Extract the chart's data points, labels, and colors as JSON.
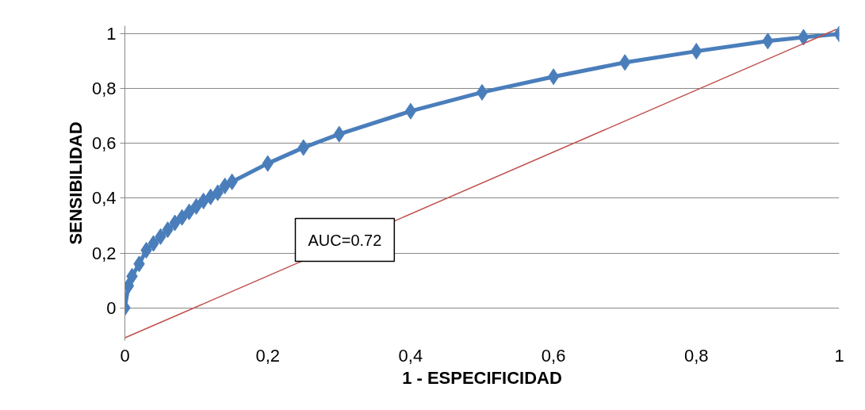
{
  "chart_data": {
    "type": "line",
    "xlabel": "1 - ESPECIFICIDAD",
    "ylabel": "SENSIBILIDAD",
    "x": [
      0,
      0.005,
      0.01,
      0.02,
      0.03,
      0.04,
      0.05,
      0.06,
      0.07,
      0.08,
      0.09,
      0.1,
      0.11,
      0.12,
      0.13,
      0.14,
      0.15,
      0.2,
      0.25,
      0.3,
      0.4,
      0.5,
      0.6,
      0.7,
      0.8,
      0.9,
      0.95,
      1
    ],
    "series": [
      {
        "color": "#4a7ebb",
        "marker": "diamond",
        "values": [
          0,
          0.08,
          0.115,
          0.16,
          0.21,
          0.235,
          0.26,
          0.285,
          0.31,
          0.33,
          0.35,
          0.37,
          0.39,
          0.405,
          0.42,
          0.445,
          0.46,
          0.527,
          0.585,
          0.634,
          0.718,
          0.787,
          0.844,
          0.896,
          0.937,
          0.974,
          0.988,
          1
        ]
      },
      {
        "type": "line",
        "color": "#c0504d",
        "marker": "none",
        "x": [
          0,
          0.996
        ],
        "values": [
          -0.11,
          1.017
        ]
      }
    ],
    "xlim": [
      0,
      1
    ],
    "ylim": [
      -0.12,
      1.03
    ],
    "xticks": [
      0,
      {
        "value": 0.2,
        "label": "0,2"
      },
      {
        "value": 0.4,
        "label": "0,4"
      },
      {
        "value": 0.6,
        "label": "0,6"
      },
      {
        "value": 0.8,
        "label": "0,8"
      },
      1
    ],
    "yticks": [
      0,
      {
        "value": 0.2,
        "label": "0,2"
      },
      {
        "value": 0.4,
        "label": "0,4"
      },
      {
        "value": 0.6,
        "label": "0,6"
      },
      {
        "value": 0.8,
        "label": "0,8"
      },
      1
    ],
    "grid": "y",
    "annotations": [
      "AUC=0.72"
    ]
  }
}
